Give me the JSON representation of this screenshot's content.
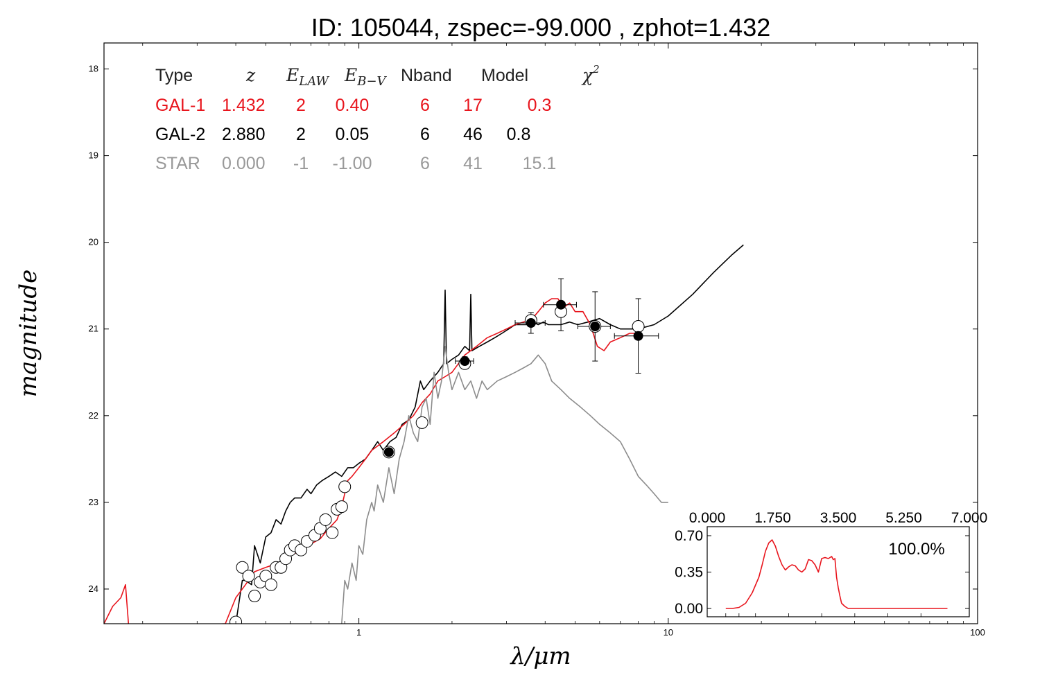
{
  "chart_data": {
    "type": "line",
    "title": "ID:  105044, zspec=-99.000 , zphot=1.432",
    "xlabel": "λ/μm",
    "ylabel": "magnitude",
    "xscale": "log",
    "xlim": [
      0.15,
      100
    ],
    "ylim": [
      24.4,
      17.7
    ],
    "x_tick_labels": [
      "1",
      "10",
      "100"
    ],
    "x_tick_values": [
      1,
      10,
      100
    ],
    "y_tick_labels": [
      "18",
      "19",
      "20",
      "21",
      "22",
      "23",
      "24"
    ],
    "y_tick_values": [
      18,
      19,
      20,
      21,
      22,
      23,
      24
    ],
    "grid": false,
    "colors": {
      "gal1": "#e8141c",
      "gal2": "#000000",
      "star": "#8c8c8c"
    },
    "fit_table": {
      "headers": [
        "Type",
        "z",
        "E_LAW",
        "E_B-V",
        "Nband",
        "Model",
        "χ²"
      ],
      "header_display": {
        "type": "Type",
        "z": "z",
        "elaw_main": "E",
        "elaw_sub": "LAW",
        "ebv_main": "E",
        "ebv_sub": "B−V",
        "nband": "Nband",
        "model": "Model",
        "chi_main": "χ",
        "chi_sup": "2"
      },
      "rows": [
        {
          "type": "GAL-1",
          "z": "1.432",
          "elaw": "2",
          "ebv": "0.40",
          "nband": "6",
          "model": "17",
          "chi2": "0.3",
          "color": "#e8141c"
        },
        {
          "type": "GAL-2",
          "z": "2.880",
          "elaw": "2",
          "ebv": "0.05",
          "nband": "6",
          "model": "46",
          "chi2": "0.8",
          "color": "#000000"
        },
        {
          "type": "STAR",
          "z": "0.000",
          "elaw": "-1",
          "ebv": "-1.00",
          "nband": "6",
          "model": "41",
          "chi2": "15.1",
          "color": "#999999"
        }
      ]
    },
    "series": [
      {
        "key": "gal2",
        "x": [
          0.4,
          0.42,
          0.43,
          0.45,
          0.46,
          0.48,
          0.5,
          0.52,
          0.54,
          0.56,
          0.58,
          0.6,
          0.62,
          0.65,
          0.68,
          0.7,
          0.73,
          0.76,
          0.8,
          0.84,
          0.88,
          0.92,
          0.96,
          1.0,
          1.05,
          1.1,
          1.15,
          1.2,
          1.26,
          1.32,
          1.38,
          1.45,
          1.52,
          1.58,
          1.62,
          1.7,
          1.8,
          1.88,
          1.9,
          1.92,
          2.0,
          2.1,
          2.2,
          2.28,
          2.3,
          2.32,
          2.45,
          2.6,
          2.75,
          2.9,
          3.05,
          3.2,
          3.35,
          3.5,
          3.65,
          3.8,
          3.95,
          4.1,
          4.3,
          4.5,
          4.8,
          5.1,
          5.5,
          6.0,
          6.5,
          7.0,
          7.5,
          8.0,
          9.0,
          10.0,
          12.0,
          14.0,
          16.0,
          17.5
        ],
        "y": [
          24.4,
          23.9,
          23.9,
          23.95,
          23.5,
          23.7,
          23.4,
          23.35,
          23.2,
          23.25,
          23.1,
          23.0,
          22.95,
          22.95,
          22.85,
          22.9,
          22.8,
          22.75,
          22.7,
          22.65,
          22.7,
          22.6,
          22.6,
          22.55,
          22.5,
          22.4,
          22.3,
          22.4,
          22.3,
          22.25,
          22.1,
          22.05,
          21.9,
          21.6,
          21.7,
          21.6,
          21.5,
          21.4,
          20.55,
          21.4,
          21.35,
          21.3,
          21.2,
          21.25,
          20.6,
          21.25,
          21.2,
          21.15,
          21.1,
          21.05,
          21.0,
          20.95,
          20.95,
          20.95,
          20.92,
          20.95,
          20.92,
          20.95,
          20.95,
          20.95,
          20.92,
          20.95,
          20.92,
          20.88,
          20.95,
          21.0,
          21.0,
          21.0,
          20.95,
          20.85,
          20.6,
          20.35,
          20.15,
          20.03
        ]
      },
      {
        "key": "gal1",
        "x": [
          0.15,
          0.16,
          0.17,
          0.176,
          0.18,
          0.182,
          0.37,
          0.4,
          0.43,
          0.46,
          0.5,
          0.55,
          0.6,
          0.65,
          0.7,
          0.75,
          0.8,
          0.85,
          0.88,
          0.9,
          0.92,
          0.95,
          1.0,
          1.05,
          1.1,
          1.2,
          1.3,
          1.4,
          1.5,
          1.6,
          1.7,
          1.8,
          1.9,
          2.0,
          2.2,
          2.4,
          2.6,
          2.8,
          3.0,
          3.2,
          3.4,
          3.6,
          3.8,
          4.0,
          4.2,
          4.4,
          4.6,
          4.8,
          5.0,
          5.3,
          5.6,
          5.9,
          6.2,
          6.5,
          7.0,
          7.5,
          8.0
        ],
        "y": [
          24.4,
          24.2,
          24.1,
          23.95,
          24.4,
          24.45,
          24.4,
          24.1,
          23.95,
          23.8,
          23.75,
          23.7,
          23.62,
          23.55,
          23.48,
          23.42,
          23.3,
          23.2,
          23.05,
          22.9,
          22.75,
          22.7,
          22.6,
          22.5,
          22.4,
          22.3,
          22.2,
          22.1,
          22.0,
          21.85,
          21.75,
          21.6,
          21.55,
          21.5,
          21.3,
          21.2,
          21.1,
          21.05,
          21.0,
          20.95,
          20.92,
          20.9,
          20.8,
          20.7,
          20.65,
          20.65,
          20.75,
          20.7,
          20.8,
          20.8,
          20.95,
          21.2,
          21.25,
          21.15,
          21.1,
          21.05,
          21.05
        ]
      },
      {
        "key": "star",
        "x": [
          0.88,
          0.9,
          0.92,
          0.95,
          0.98,
          1.0,
          1.03,
          1.06,
          1.1,
          1.12,
          1.15,
          1.2,
          1.25,
          1.3,
          1.35,
          1.4,
          1.45,
          1.5,
          1.55,
          1.6,
          1.65,
          1.7,
          1.75,
          1.8,
          1.85,
          1.9,
          1.95,
          2.0,
          2.1,
          2.2,
          2.3,
          2.4,
          2.5,
          2.6,
          2.8,
          3.0,
          3.2,
          3.4,
          3.6,
          3.8,
          4.0,
          4.2,
          4.5,
          4.8,
          5.2,
          5.6,
          6.0,
          6.5,
          7.0,
          7.5,
          8.0,
          8.5,
          9.0,
          9.5,
          10.0
        ],
        "y": [
          24.4,
          23.9,
          24.0,
          23.7,
          23.9,
          23.5,
          23.6,
          23.2,
          23.0,
          23.1,
          22.8,
          23.0,
          22.6,
          22.9,
          22.5,
          22.3,
          22.0,
          22.2,
          22.3,
          21.9,
          21.8,
          22.1,
          21.5,
          21.8,
          21.6,
          21.2,
          21.5,
          21.7,
          21.5,
          21.7,
          21.6,
          21.8,
          21.6,
          21.7,
          21.6,
          21.55,
          21.5,
          21.45,
          21.4,
          21.3,
          21.4,
          21.6,
          21.7,
          21.8,
          21.9,
          22.0,
          22.1,
          22.2,
          22.3,
          22.5,
          22.7,
          22.8,
          22.9,
          23.0,
          23.0
        ]
      }
    ],
    "photometry_open": [
      {
        "x": 0.4,
        "y": 24.38
      },
      {
        "x": 0.42,
        "y": 23.75
      },
      {
        "x": 0.44,
        "y": 23.85
      },
      {
        "x": 0.46,
        "y": 24.08
      },
      {
        "x": 0.48,
        "y": 23.92
      },
      {
        "x": 0.5,
        "y": 23.85
      },
      {
        "x": 0.52,
        "y": 23.95
      },
      {
        "x": 0.54,
        "y": 23.75
      },
      {
        "x": 0.56,
        "y": 23.75
      },
      {
        "x": 0.58,
        "y": 23.65
      },
      {
        "x": 0.6,
        "y": 23.55
      },
      {
        "x": 0.62,
        "y": 23.5
      },
      {
        "x": 0.65,
        "y": 23.55
      },
      {
        "x": 0.68,
        "y": 23.45
      },
      {
        "x": 0.72,
        "y": 23.38
      },
      {
        "x": 0.75,
        "y": 23.3
      },
      {
        "x": 0.78,
        "y": 23.2
      },
      {
        "x": 0.82,
        "y": 23.35
      },
      {
        "x": 0.85,
        "y": 23.08
      },
      {
        "x": 0.88,
        "y": 23.05
      },
      {
        "x": 0.9,
        "y": 22.82
      },
      {
        "x": 1.25,
        "y": 22.42
      },
      {
        "x": 1.6,
        "y": 22.08
      },
      {
        "x": 2.2,
        "y": 21.4
      },
      {
        "x": 3.6,
        "y": 20.9
      },
      {
        "x": 4.5,
        "y": 20.8
      },
      {
        "x": 5.8,
        "y": 20.97
      },
      {
        "x": 8.0,
        "y": 20.97
      }
    ],
    "photometry_filled": [
      {
        "x": 1.25,
        "y": 22.42,
        "xerr": 0.05,
        "yerr": 0.05
      },
      {
        "x": 2.2,
        "y": 21.37,
        "xerr": 0.15,
        "yerr": 0.05
      },
      {
        "x": 3.6,
        "y": 20.93,
        "xerr": 0.4,
        "yerr": 0.12
      },
      {
        "x": 4.5,
        "y": 20.72,
        "xerr": 0.55,
        "yerr": 0.3
      },
      {
        "x": 5.8,
        "y": 20.97,
        "xerr": 0.7,
        "yerr": 0.4
      },
      {
        "x": 8.0,
        "y": 21.08,
        "xerr": 1.3,
        "yerr": 0.43
      }
    ],
    "inset": {
      "type": "line",
      "xlim": [
        0,
        7
      ],
      "ylim": [
        0,
        0.7
      ],
      "x_tick_labels": [
        "0.000",
        "1.750",
        "3.500",
        "5.250",
        "7.000"
      ],
      "x_tick_values": [
        0,
        1.75,
        3.5,
        5.25,
        7
      ],
      "y_tick_labels": [
        "0.70",
        "0.35",
        "0.00"
      ],
      "y_tick_values": [
        0.7,
        0.35,
        0
      ],
      "label": "100.0%",
      "x": [
        0.1,
        0.3,
        0.5,
        0.7,
        0.9,
        1.1,
        1.2,
        1.3,
        1.4,
        1.5,
        1.6,
        1.7,
        1.8,
        1.9,
        2.0,
        2.1,
        2.2,
        2.3,
        2.4,
        2.5,
        2.6,
        2.7,
        2.8,
        2.9,
        3.0,
        3.1,
        3.2,
        3.3,
        3.35,
        3.4,
        3.45,
        3.5,
        3.55,
        3.6,
        3.7,
        3.8,
        4.0,
        4.5,
        5.0,
        5.5,
        6.0,
        6.5,
        6.8
      ],
      "y": [
        0.0,
        0.0,
        0.01,
        0.05,
        0.15,
        0.3,
        0.42,
        0.55,
        0.63,
        0.66,
        0.6,
        0.5,
        0.42,
        0.37,
        0.4,
        0.42,
        0.41,
        0.37,
        0.35,
        0.38,
        0.47,
        0.46,
        0.42,
        0.35,
        0.48,
        0.49,
        0.48,
        0.5,
        0.47,
        0.48,
        0.3,
        0.2,
        0.12,
        0.05,
        0.02,
        0.0,
        0.0,
        0.0,
        0.0,
        0.0,
        0.0,
        0.0,
        0.0
      ]
    }
  }
}
